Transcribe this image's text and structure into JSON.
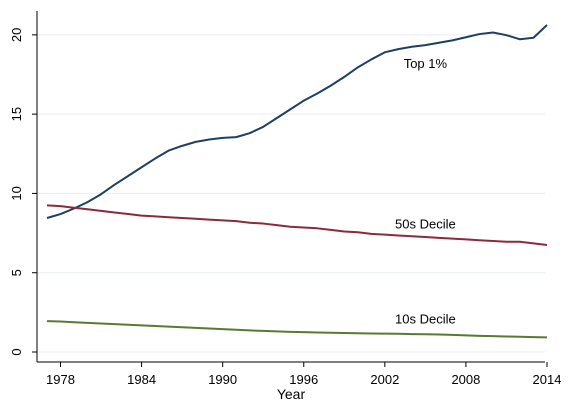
{
  "chart_data": {
    "type": "line",
    "title": "",
    "xlabel": "Year",
    "ylabel": "",
    "xlim": [
      1977,
      2014
    ],
    "ylim": [
      0,
      21
    ],
    "x_ticks": [
      1978,
      1984,
      1990,
      1996,
      2002,
      2008,
      2014
    ],
    "y_ticks": [
      0,
      5,
      10,
      15,
      20
    ],
    "grid": true,
    "legend": "none",
    "x": [
      1977,
      1978,
      1979,
      1980,
      1981,
      1982,
      1983,
      1984,
      1985,
      1986,
      1987,
      1988,
      1989,
      1990,
      1991,
      1992,
      1993,
      1994,
      1995,
      1996,
      1997,
      1998,
      1999,
      2000,
      2001,
      2002,
      2003,
      2004,
      2005,
      2006,
      2007,
      2008,
      2009,
      2010,
      2011,
      2012,
      2013,
      2014
    ],
    "series": [
      {
        "name": "Top 1%",
        "color": "#1f3f5f",
        "values": [
          8.45,
          8.7,
          9.05,
          9.45,
          9.95,
          10.55,
          11.1,
          11.65,
          12.2,
          12.7,
          13.0,
          13.25,
          13.4,
          13.5,
          13.55,
          13.8,
          14.2,
          14.75,
          15.3,
          15.85,
          16.3,
          16.8,
          17.35,
          17.95,
          18.45,
          18.9,
          19.1,
          19.25,
          19.35,
          19.5,
          19.65,
          19.85,
          20.05,
          20.15,
          19.98,
          19.72,
          19.82,
          20.62
        ]
      },
      {
        "name": "50s Decile",
        "color": "#8b2a3a",
        "values": [
          9.25,
          9.2,
          9.1,
          9.0,
          8.9,
          8.8,
          8.7,
          8.6,
          8.55,
          8.5,
          8.45,
          8.4,
          8.35,
          8.3,
          8.25,
          8.15,
          8.1,
          8.0,
          7.9,
          7.85,
          7.8,
          7.7,
          7.6,
          7.55,
          7.45,
          7.4,
          7.35,
          7.3,
          7.25,
          7.2,
          7.15,
          7.1,
          7.05,
          7.0,
          6.95,
          6.95,
          6.85,
          6.75
        ]
      },
      {
        "name": "10s Decile",
        "color": "#5a7a30",
        "values": [
          1.95,
          1.92,
          1.88,
          1.84,
          1.8,
          1.76,
          1.72,
          1.68,
          1.64,
          1.6,
          1.56,
          1.52,
          1.48,
          1.44,
          1.4,
          1.36,
          1.33,
          1.3,
          1.27,
          1.25,
          1.23,
          1.21,
          1.2,
          1.18,
          1.17,
          1.16,
          1.15,
          1.13,
          1.12,
          1.1,
          1.08,
          1.05,
          1.02,
          1.0,
          0.98,
          0.96,
          0.94,
          0.92
        ]
      }
    ],
    "annotations": [
      {
        "text": "Top 1%",
        "x": 2005,
        "y": 17.9
      },
      {
        "text": "50s Decile",
        "x": 2005,
        "y": 7.8
      },
      {
        "text": "10s Decile",
        "x": 2005,
        "y": 1.8
      }
    ]
  }
}
